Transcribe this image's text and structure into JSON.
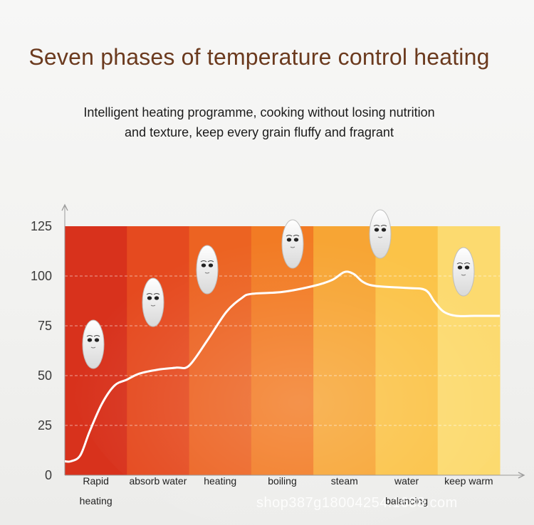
{
  "header": {
    "title": "Seven phases of temperature control heating",
    "subtitle_line1": "Intelligent heating programme, cooking without losing nutrition",
    "subtitle_line2": "and texture, keep every grain fluffy and fragrant"
  },
  "chart_data": {
    "type": "line",
    "title": "Seven phases of temperature control heating",
    "xlabel": "",
    "ylabel": "",
    "ylim": [
      0,
      125
    ],
    "yticks": [
      0,
      25,
      50,
      75,
      100,
      125
    ],
    "categories": [
      [
        "Rapid",
        "heating"
      ],
      [
        "absorb water"
      ],
      [
        "heating"
      ],
      [
        "boiling"
      ],
      [
        "steam"
      ],
      [
        "water",
        "balancing"
      ],
      [
        "keep warm"
      ]
    ],
    "phase_colors": [
      "#d8321c",
      "#e54a1f",
      "#ec6322",
      "#f27b24",
      "#f7a534",
      "#fbc348",
      "#fcda6f"
    ],
    "x": [
      0,
      0.1,
      0.25,
      0.4,
      0.6,
      0.8,
      1.0,
      1.2,
      1.5,
      1.8,
      2.0,
      2.3,
      2.6,
      2.85,
      3.0,
      3.5,
      4.0,
      4.3,
      4.5,
      4.65,
      4.8,
      5.0,
      5.5,
      5.8,
      5.95,
      6.1,
      6.3,
      6.6,
      7.0
    ],
    "values": [
      7,
      7,
      10,
      22,
      36,
      45,
      48,
      51,
      53,
      54,
      55,
      68,
      82,
      89,
      91,
      92,
      95,
      98,
      102,
      101,
      97,
      95,
      94,
      93,
      87,
      82,
      80,
      80,
      80
    ],
    "grid": "horizontal dashed",
    "mascots": [
      "rice-grain",
      "rice-grain",
      "rice-grain",
      "rice-grain",
      "rice-grain",
      "rice-grain"
    ]
  },
  "watermark": "shop387g18004254.1688.com"
}
